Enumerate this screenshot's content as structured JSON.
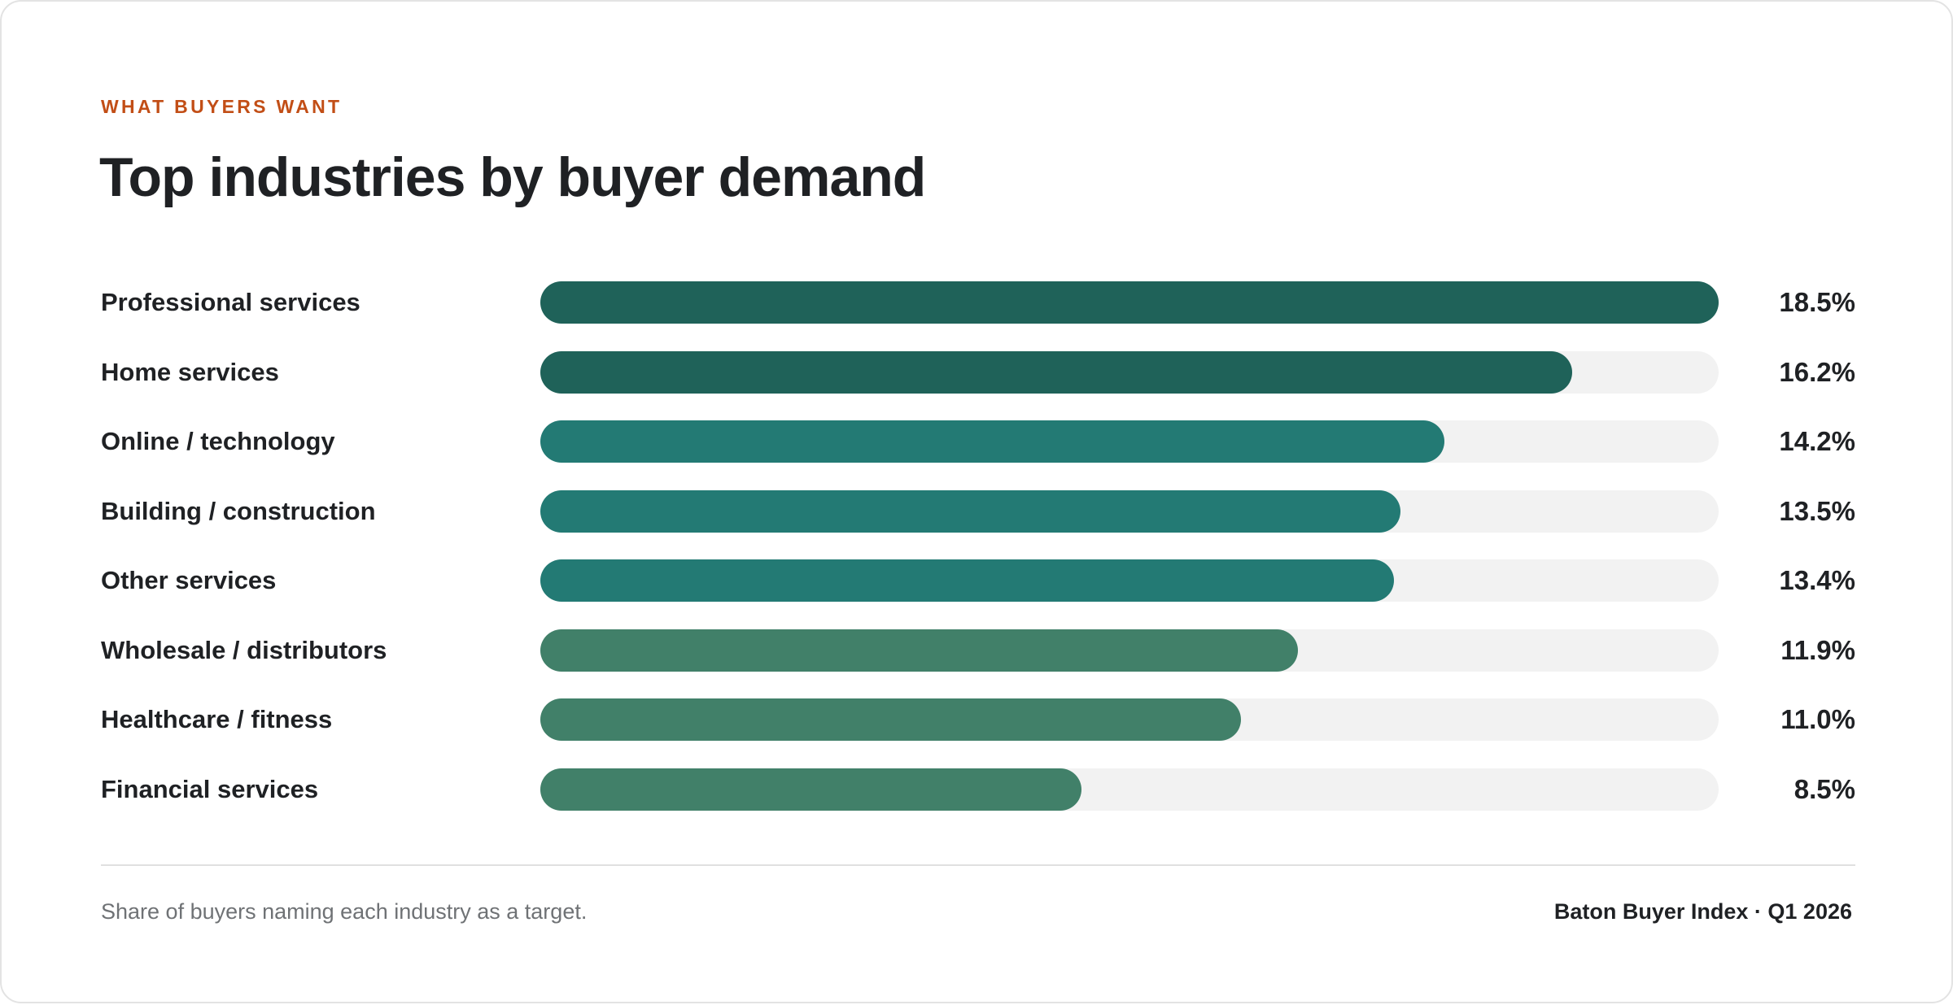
{
  "eyebrow": "WHAT BUYERS WANT",
  "title": "Top industries by buyer demand",
  "footer": {
    "note": "Share of buyers naming each industry as a target.",
    "source": "Baton Buyer Index · Q1 2026"
  },
  "colors": {
    "dark": "#1f6259",
    "mid": "#237a74",
    "light": "#418069",
    "track": "#f2f2f2",
    "accent": "#c24e16"
  },
  "chart_data": {
    "type": "bar",
    "orientation": "horizontal",
    "categories": [
      "Professional services",
      "Home services",
      "Online / technology",
      "Building / construction",
      "Other services",
      "Wholesale / distributors",
      "Healthcare / fitness",
      "Financial services"
    ],
    "values": [
      18.5,
      16.2,
      14.2,
      13.5,
      13.4,
      11.9,
      11.0,
      8.5
    ],
    "value_labels": [
      "18.5%",
      "16.2%",
      "14.2%",
      "13.5%",
      "13.4%",
      "11.9%",
      "11.0%",
      "8.5%"
    ],
    "bar_colors": [
      "#1f6259",
      "#1f6259",
      "#237a74",
      "#237a74",
      "#237a74",
      "#418069",
      "#418069",
      "#418069"
    ],
    "xlim": [
      0,
      18.5
    ],
    "unit": "%",
    "grid": false,
    "legend": "none"
  }
}
